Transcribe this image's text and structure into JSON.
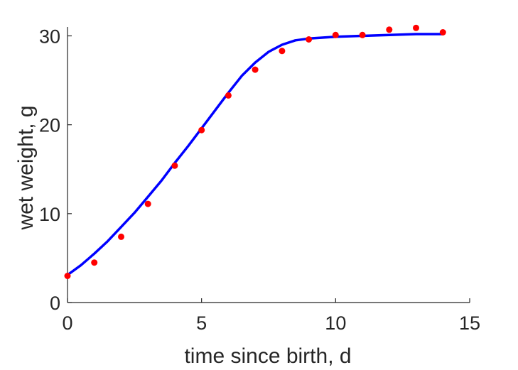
{
  "chart_data": {
    "type": "scatter",
    "title": "",
    "xlabel": "time since birth, d",
    "ylabel": "wet weight, g",
    "xlim": [
      0,
      15
    ],
    "ylim": [
      0,
      31
    ],
    "xticks": [
      0,
      5,
      10,
      15
    ],
    "yticks": [
      0,
      10,
      20,
      30
    ],
    "grid": false,
    "series": [
      {
        "kind": "points",
        "color": "#ff0000",
        "x": [
          0,
          1,
          2,
          3,
          4,
          5,
          6,
          7,
          8,
          9,
          10,
          11,
          12,
          13,
          14
        ],
        "y": [
          3.0,
          4.5,
          7.4,
          11.1,
          15.4,
          19.4,
          23.3,
          26.2,
          28.3,
          29.6,
          30.1,
          30.1,
          30.7,
          30.9,
          30.4
        ]
      },
      {
        "kind": "line",
        "color": "#0000ff",
        "x": [
          0,
          0.5,
          1,
          1.5,
          2,
          2.5,
          3,
          3.5,
          4,
          4.5,
          5,
          5.5,
          6,
          6.5,
          7,
          7.5,
          8,
          8.5,
          9,
          9.5,
          10,
          11,
          12,
          13,
          14
        ],
        "y": [
          3.1,
          4.2,
          5.5,
          6.9,
          8.5,
          10.1,
          11.9,
          13.7,
          15.7,
          17.6,
          19.6,
          21.6,
          23.6,
          25.5,
          27.0,
          28.2,
          29.0,
          29.5,
          29.7,
          29.8,
          29.9,
          30.0,
          30.1,
          30.2,
          30.2
        ]
      }
    ]
  }
}
